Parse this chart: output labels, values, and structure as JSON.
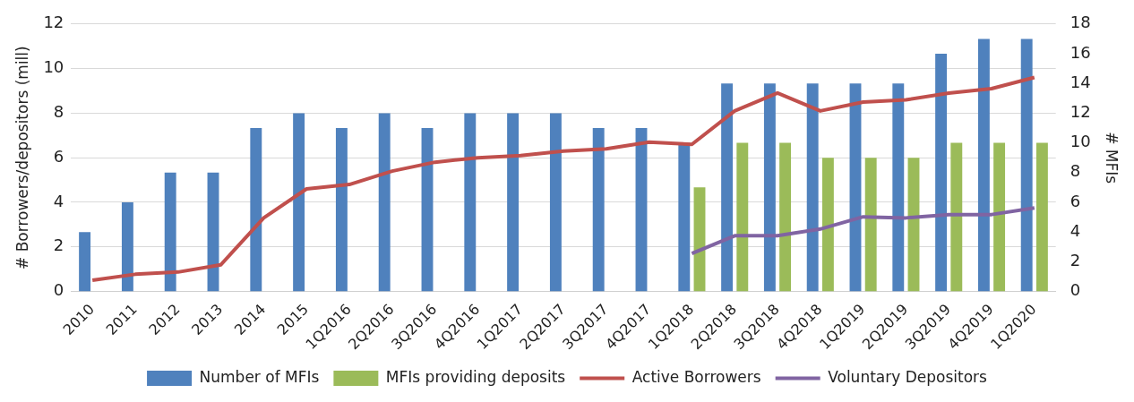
{
  "chart_data": {
    "type": "bar",
    "categories": [
      "2010",
      "2011",
      "2012",
      "2013",
      "2014",
      "2015",
      "1Q2016",
      "2Q2016",
      "3Q2016",
      "4Q2016",
      "1Q2017",
      "2Q2017",
      "3Q2017",
      "4Q2017",
      "1Q2018",
      "2Q2018",
      "3Q2018",
      "4Q2018",
      "1Q2019",
      "2Q2019",
      "3Q2019",
      "4Q2019",
      "1Q2020"
    ],
    "series": [
      {
        "name": "Number of MFIs",
        "axis": "y2",
        "color": "#4f81bd",
        "values": [
          4,
          6,
          8,
          8,
          11,
          12,
          11,
          12,
          11,
          12,
          12,
          12,
          11,
          11,
          10,
          14,
          14,
          14,
          14,
          14,
          16,
          17,
          17
        ]
      },
      {
        "name": "MFIs providing deposits",
        "axis": "y2",
        "color": "#9bbb59",
        "values": [
          null,
          null,
          null,
          null,
          null,
          null,
          null,
          null,
          null,
          null,
          null,
          null,
          null,
          null,
          7,
          10,
          10,
          9,
          9,
          9,
          10,
          10,
          10
        ]
      },
      {
        "name": "Active Borrowers",
        "type": "line",
        "color": "#c0504d",
        "values": [
          0.5,
          0.77,
          0.87,
          1.2,
          3.3,
          4.6,
          4.8,
          5.4,
          5.8,
          6.0,
          6.1,
          6.3,
          6.4,
          6.7,
          6.6,
          8.1,
          8.9,
          8.1,
          8.5,
          8.6,
          8.9,
          9.1,
          9.6
        ]
      },
      {
        "name": "Voluntary Depositors",
        "type": "line",
        "color": "#8064a2",
        "values": [
          null,
          null,
          null,
          null,
          null,
          null,
          null,
          null,
          null,
          null,
          null,
          null,
          null,
          null,
          1.7,
          2.5,
          2.5,
          2.8,
          3.35,
          3.3,
          3.45,
          3.45,
          3.75
        ]
      }
    ],
    "ylabel": "# Borrowers/depositors (mill)",
    "y2label": "# MFIs",
    "ylim": [
      0,
      12
    ],
    "yticks": [
      0,
      2,
      4,
      6,
      8,
      10,
      12
    ],
    "y2lim": [
      0,
      18
    ],
    "y2ticks": [
      0,
      2,
      4,
      6,
      8,
      10,
      12,
      14,
      16,
      18
    ],
    "grid": "y",
    "legend": "bottom",
    "marker": "none",
    "line_style": "solid"
  }
}
